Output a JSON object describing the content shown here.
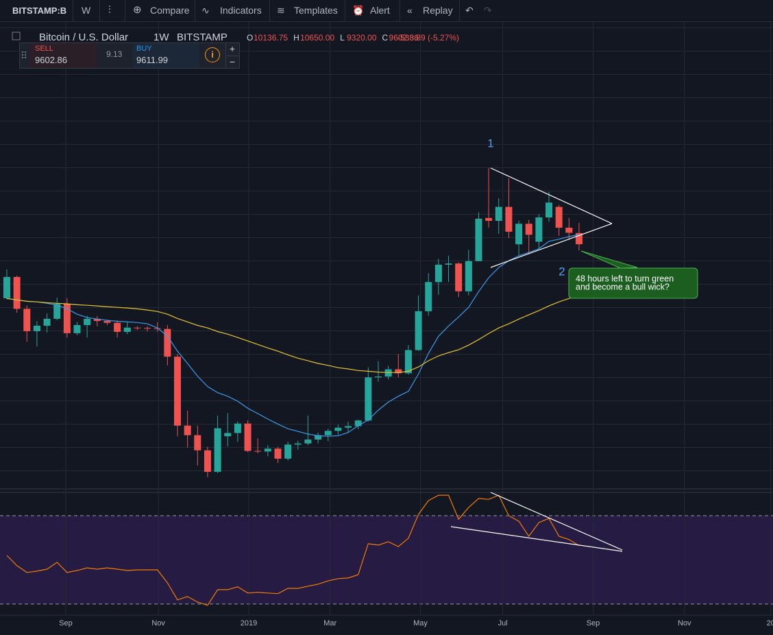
{
  "toolbar": {
    "symbol": "BITSTAMP:B",
    "interval": "W",
    "items": [
      "Compare",
      "Indicators",
      "Templates",
      "Alert",
      "Replay"
    ]
  },
  "legend": {
    "title": "Bitcoin / U.S. Dollar",
    "interval": "1W",
    "exchange": "BITSTAMP",
    "ohlc": [
      {
        "key": "O",
        "value": "10136.75"
      },
      {
        "key": "H",
        "value": "10650.00"
      },
      {
        "key": "L",
        "value": "9320.00"
      },
      {
        "key": "C",
        "value": "9602.86"
      }
    ],
    "change": "-533.89 (-5.27%)"
  },
  "trade": {
    "sell_label": "SELL",
    "sell_price": "9602.86",
    "spread": "9.13",
    "buy_label": "BUY",
    "buy_price": "9611.99",
    "plus": "+",
    "minus": "−"
  },
  "chart_data": [
    {
      "type": "candlestick",
      "log_scale": true,
      "ylim": [
        2976,
        27350
      ],
      "xlim": [
        -0.68,
        76.32
      ],
      "up_color": "#26a69a",
      "down_color": "#ef5350",
      "open": [
        7400,
        8200,
        7030,
        6310,
        6480,
        6700,
        7200,
        6250,
        6500,
        6700,
        6630,
        6570,
        6290,
        6420,
        6410,
        6400,
        6380,
        5580,
        4000,
        3820,
        3550,
        3200,
        3800,
        3860,
        4040,
        3540,
        3530,
        3580,
        3410,
        3650,
        3670,
        3740,
        3820,
        3900,
        3960,
        3990,
        4100,
        5050,
        5070,
        5250,
        5150,
        5760,
        6950,
        8000,
        8700,
        8750,
        7650,
        8850,
        10900,
        10750,
        11500,
        9600,
        10600,
        9720,
        10930,
        11500,
        10400,
        10136.75
      ],
      "high": [
        8500,
        8250,
        7150,
        6620,
        6880,
        7420,
        7400,
        6600,
        6800,
        6790,
        6670,
        6650,
        6600,
        6460,
        6460,
        6590,
        6500,
        5650,
        4300,
        4000,
        3610,
        4200,
        4250,
        4080,
        4100,
        3760,
        3640,
        3610,
        3700,
        3720,
        4200,
        3870,
        3940,
        4020,
        4080,
        4120,
        5300,
        5460,
        5340,
        5650,
        5900,
        7500,
        8350,
        8950,
        9090,
        8800,
        9350,
        11200,
        13880,
        12000,
        13200,
        10760,
        10800,
        11100,
        12360,
        11600,
        10900,
        10650
      ],
      "low": [
        7360,
        6900,
        6000,
        5860,
        6270,
        6660,
        6120,
        6190,
        6120,
        6460,
        6500,
        6120,
        6220,
        6350,
        6300,
        6290,
        5350,
        3800,
        3600,
        3300,
        3120,
        3180,
        3620,
        3700,
        3520,
        3500,
        3450,
        3340,
        3380,
        3560,
        3640,
        3670,
        3710,
        3830,
        3880,
        3930,
        4080,
        4950,
        5000,
        5050,
        5120,
        5740,
        6800,
        7520,
        8000,
        7440,
        7500,
        8850,
        10400,
        10100,
        9900,
        9100,
        9150,
        9400,
        10700,
        10000,
        9800,
        9320
      ],
      "close": [
        8200,
        7030,
        6310,
        6480,
        6700,
        7200,
        6250,
        6500,
        6700,
        6630,
        6570,
        6290,
        6420,
        6410,
        6400,
        6380,
        5580,
        4000,
        3820,
        3550,
        3200,
        3950,
        3860,
        4040,
        3540,
        3530,
        3580,
        3410,
        3650,
        3670,
        3740,
        3820,
        3900,
        3960,
        3990,
        4100,
        5050,
        5070,
        5250,
        5150,
        5760,
        6950,
        8000,
        8700,
        8750,
        7650,
        8850,
        10860,
        10750,
        11500,
        10200,
        10600,
        10050,
        10930,
        11740,
        10400,
        10150,
        9602.86
      ],
      "overlays": [
        {
          "color": "#3d9be9",
          "values": [
            7390,
            7340,
            7290,
            7270,
            7220,
            7150,
            7030,
            6850,
            6740,
            6690,
            6650,
            6620,
            6600,
            6580,
            6540,
            6410,
            6160,
            5730,
            5400,
            5080,
            4830,
            4690,
            4610,
            4500,
            4350,
            4240,
            4130,
            4030,
            3940,
            3890,
            3840,
            3810,
            3800,
            3810,
            3870,
            4000,
            4110,
            4310,
            4480,
            4610,
            4720,
            5130,
            5670,
            6160,
            6470,
            6760,
            7080,
            7640,
            8170,
            8580,
            8870,
            9080,
            9230,
            9390,
            9740,
            9840,
            9965,
            10060
          ]
        },
        {
          "color": "#e6c52f",
          "values": [
            7390,
            7340,
            7290,
            7270,
            7240,
            7220,
            7200,
            7170,
            7150,
            7130,
            7100,
            7080,
            7060,
            7030,
            6990,
            6940,
            6850,
            6710,
            6600,
            6490,
            6410,
            6300,
            6220,
            6120,
            6020,
            5920,
            5820,
            5730,
            5630,
            5540,
            5470,
            5400,
            5350,
            5290,
            5260,
            5220,
            5200,
            5180,
            5170,
            5170,
            5200,
            5310,
            5470,
            5600,
            5690,
            5770,
            5900,
            6060,
            6240,
            6410,
            6540,
            6690,
            6830,
            6970,
            7130,
            7270,
            7390,
            7510
          ]
        }
      ],
      "annotations": [
        {
          "text": "1"
        },
        {
          "text": "2"
        },
        {
          "lines": [
            "48 hours left to turn green",
            "and become a bull wick?"
          ]
        }
      ]
    },
    {
      "type": "line",
      "color": "#f57c00",
      "ylim": [
        25,
        81.8
      ],
      "xlim": [
        -0.68,
        76.32
      ],
      "bands": [
        30,
        70
      ],
      "band_color": "#261b43",
      "values": [
        52.0,
        47.4,
        44.3,
        44.9,
        45.8,
        48.9,
        44.3,
        45.2,
        46.4,
        45.8,
        46.4,
        45.8,
        45.2,
        45.5,
        45.5,
        45.5,
        39.6,
        31.9,
        33.4,
        30.9,
        29.4,
        36.5,
        36.5,
        37.8,
        35.0,
        35.3,
        35.0,
        34.7,
        37.1,
        37.1,
        38.1,
        39.0,
        40.5,
        41.5,
        41.8,
        43.3,
        57.3,
        56.7,
        58.2,
        56.0,
        59.8,
        70.6,
        76.8,
        79.3,
        79.3,
        68.4,
        73.7,
        77.8,
        77.4,
        79.3,
        70.0,
        67.5,
        60.7,
        66.9,
        68.8,
        60.7,
        59.2,
        56.4
      ],
      "xticks": [
        {
          "value": 5.87,
          "label": "Sep"
        },
        {
          "value": 15.1,
          "label": "Nov"
        },
        {
          "value": 24.1,
          "label": "2019"
        },
        {
          "value": 32.2,
          "label": "Mar"
        },
        {
          "value": 41.2,
          "label": "May"
        },
        {
          "value": 49.4,
          "label": "Jul"
        },
        {
          "value": 58.4,
          "label": "Sep"
        },
        {
          "value": 67.5,
          "label": "Nov"
        },
        {
          "value": 76.1,
          "label": "20"
        }
      ]
    }
  ]
}
